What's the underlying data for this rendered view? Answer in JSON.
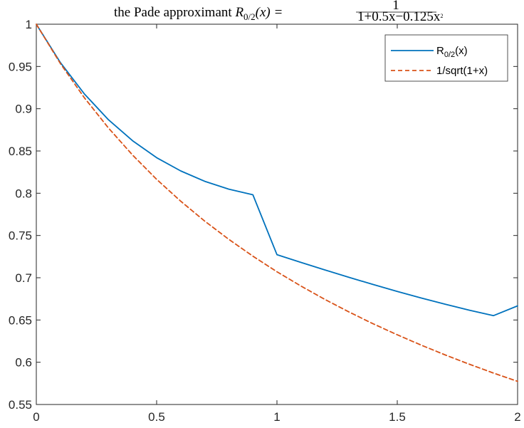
{
  "chart_data": {
    "type": "line",
    "title": {
      "prefix": "the Pade approximant ",
      "lhs_symbol": "R",
      "lhs_subscript": "0/2",
      "lhs_arg": "(x) =",
      "numerator": "1",
      "denominator": "1+0.5x−0.125x",
      "denominator_exponent": "2"
    },
    "xlabel": "",
    "ylabel": "",
    "xlim": [
      0,
      2
    ],
    "ylim": [
      0.55,
      1
    ],
    "xticks": [
      0,
      0.5,
      1,
      1.5,
      2
    ],
    "xtick_labels": [
      "0",
      "0.5",
      "1",
      "1.5",
      "2"
    ],
    "yticks": [
      0.55,
      0.6,
      0.65,
      0.7,
      0.75,
      0.8,
      0.85,
      0.9,
      0.95,
      1
    ],
    "ytick_labels": [
      "0.55",
      "0.6",
      "0.65",
      "0.7",
      "0.75",
      "0.8",
      "0.85",
      "0.9",
      "0.95",
      "1"
    ],
    "grid": false,
    "legend_position": "top-right",
    "series": [
      {
        "name_base": "R",
        "name_subscript": "0/2",
        "name_suffix": "(x)",
        "color": "#0072BD",
        "dash": "solid",
        "x": [
          0,
          0.1,
          0.2,
          0.3,
          0.4,
          0.5,
          0.6,
          0.7,
          0.8,
          0.9,
          1.0,
          1.1,
          1.2,
          1.3,
          1.4,
          1.5,
          1.6,
          1.7,
          1.8,
          1.9,
          2.0
        ],
        "y": [
          1.0,
          0.9547,
          0.9174,
          0.8869,
          0.8621,
          0.8421,
          0.8264,
          0.8141,
          0.8048,
          0.7982,
          0.7273,
          0.7181,
          0.7092,
          0.7004,
          0.692,
          0.6838,
          0.676,
          0.6686,
          0.6616,
          0.6552,
          0.6667
        ]
      },
      {
        "name": "1/sqrt(1+x)",
        "color": "#D95319",
        "dash": "dashed",
        "x": [
          0,
          0.1,
          0.2,
          0.3,
          0.4,
          0.5,
          0.6,
          0.7,
          0.8,
          0.9,
          1.0,
          1.1,
          1.2,
          1.3,
          1.4,
          1.5,
          1.6,
          1.7,
          1.8,
          1.9,
          2.0
        ],
        "y": [
          1.0,
          0.9535,
          0.9129,
          0.8771,
          0.8452,
          0.8165,
          0.7906,
          0.767,
          0.7454,
          0.7255,
          0.7071,
          0.6901,
          0.6742,
          0.6594,
          0.6455,
          0.6325,
          0.6202,
          0.6086,
          0.5976,
          0.5872,
          0.5774
        ]
      }
    ]
  }
}
